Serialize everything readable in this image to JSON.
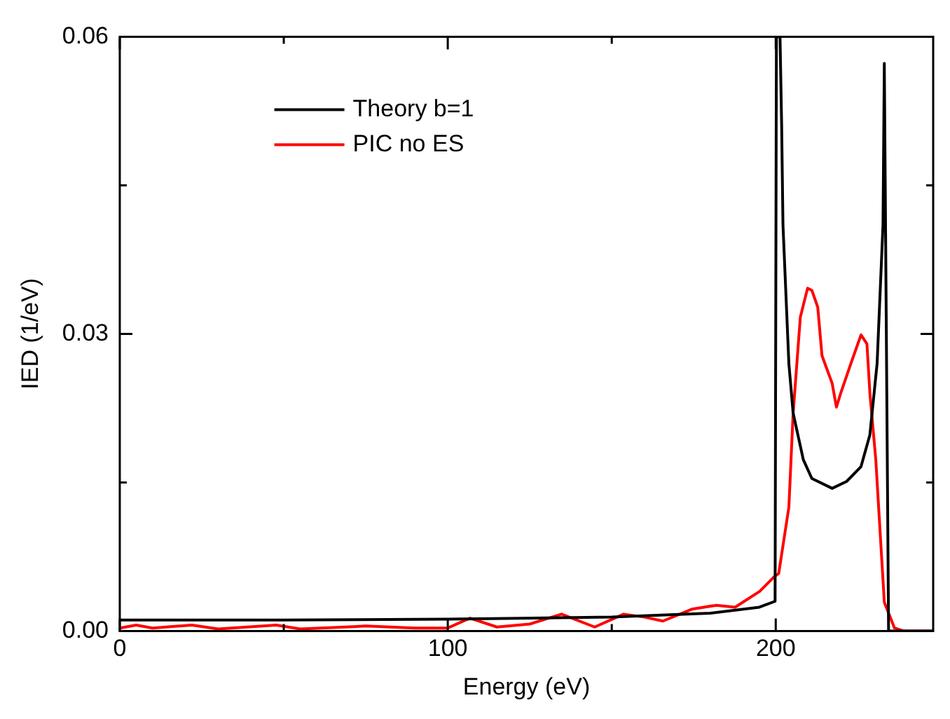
{
  "chart_data": {
    "type": "line",
    "xlabel": "Energy (eV)",
    "ylabel": "IED (1/eV)",
    "xlim": [
      0,
      248
    ],
    "ylim": [
      0,
      0.06
    ],
    "xticks": [
      0,
      {
        "value": 50,
        "label": null
      },
      100,
      {
        "value": 150,
        "label": null
      },
      200
    ],
    "yticks": [
      {
        "value": 0,
        "label": "0.00"
      },
      {
        "value": 0.015,
        "label": null
      },
      {
        "value": 0.03,
        "label": "0.03"
      },
      {
        "value": 0.045,
        "label": null
      },
      {
        "value": 0.06,
        "label": "0.06"
      }
    ],
    "grid": false,
    "legend": "top left",
    "marker": "none",
    "line_style": "solid",
    "series": [
      {
        "name": "Theory b=1",
        "color": "#000000",
        "x": [
          0,
          50,
          100,
          150,
          180,
          195,
          199.8,
          200.2,
          201.3,
          201.8,
          202.2,
          204,
          205.3,
          208.4,
          211,
          217.2,
          221.6,
          226,
          228.7,
          230.9,
          232.7,
          233.1,
          234.4,
          248
        ],
        "values": [
          0.0011,
          0.0011,
          0.0012,
          0.0014,
          0.0018,
          0.0024,
          0.003,
          0.06,
          0.06,
          0.051,
          0.041,
          0.027,
          0.022,
          0.0173,
          0.0154,
          0.0144,
          0.0151,
          0.0166,
          0.0198,
          0.027,
          0.041,
          0.0573,
          0,
          0
        ]
      },
      {
        "name": "PIC no ES",
        "color": "#ff0000",
        "x": [
          0,
          5,
          10,
          22,
          30,
          47.7,
          55,
          75,
          90,
          100,
          106.8,
          115,
          125,
          134.7,
          144.8,
          153.6,
          160,
          165.6,
          174.4,
          181.9,
          187.6,
          195.1,
          199.6,
          200.9,
          204,
          205.3,
          207.5,
          209.7,
          211,
          212.8,
          214.1,
          217.2,
          218.5,
          219.8,
          222.9,
          226,
          227.8,
          228.7,
          230.5,
          231.8,
          233.1,
          236.2,
          239,
          248
        ],
        "values": [
          0.0003,
          0.0006,
          0.0003,
          0.0006,
          0.0002,
          0.0006,
          0.0002,
          0.0005,
          0.0003,
          0.0003,
          0.0013,
          0.0004,
          0.0007,
          0.0017,
          0.0004,
          0.0017,
          0.0014,
          0.001,
          0.0022,
          0.0026,
          0.0024,
          0.004,
          0.0055,
          0.0058,
          0.0125,
          0.022,
          0.0317,
          0.0346,
          0.0344,
          0.0327,
          0.0278,
          0.025,
          0.0226,
          0.024,
          0.027,
          0.0299,
          0.029,
          0.024,
          0.0173,
          0.0101,
          0.0029,
          0.0003,
          0,
          0
        ]
      }
    ]
  }
}
